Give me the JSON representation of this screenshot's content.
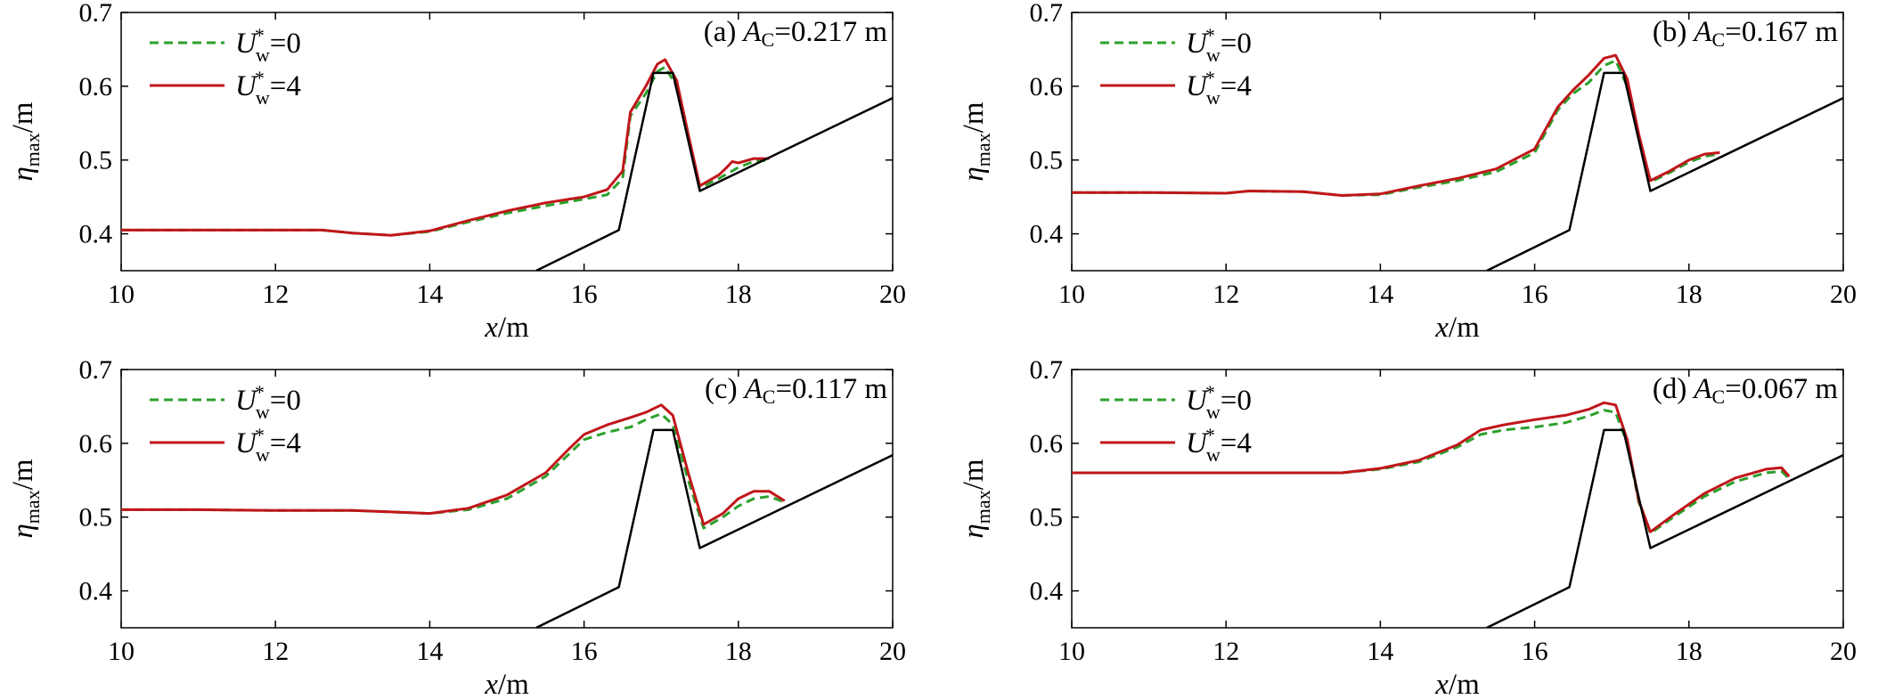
{
  "colors": {
    "wind0": "#2ca02c",
    "wind4": "#c0161a",
    "structure": "#000000"
  },
  "chart_data": [
    {
      "type": "line",
      "annotation": {
        "prefix": "(a)",
        "symbol": "A",
        "sub": "C",
        "value": "=0.217 m"
      },
      "xlabel": {
        "var": "x",
        "unit": "/m"
      },
      "ylabel": {
        "var": "η",
        "sub": "max",
        "unit": "/m"
      },
      "xlim": [
        10,
        20
      ],
      "ylim": [
        0.35,
        0.7
      ],
      "xticks": [
        "10",
        "12",
        "14",
        "16",
        "18",
        "20"
      ],
      "yticks": [
        "0.4",
        "0.5",
        "0.6",
        "0.7"
      ],
      "legend": [
        {
          "var": "U",
          "sup": "*",
          "sub": "w",
          "value": "=0"
        },
        {
          "var": "U",
          "sup": "*",
          "sub": "w",
          "value": "=4"
        }
      ],
      "series": [
        {
          "key": "wind0",
          "dashed": true,
          "x": [
            10,
            11,
            12,
            12.6,
            13,
            13.5,
            14,
            14.5,
            15,
            15.5,
            16,
            16.3,
            16.5,
            16.6,
            16.8,
            16.95,
            17.05,
            17.2,
            17.35,
            17.5,
            17.75,
            18,
            18.2,
            18.4
          ],
          "y": [
            0.405,
            0.405,
            0.405,
            0.405,
            0.401,
            0.398,
            0.403,
            0.416,
            0.428,
            0.438,
            0.447,
            0.453,
            0.475,
            0.56,
            0.59,
            0.62,
            0.626,
            0.6,
            0.53,
            0.462,
            0.475,
            0.49,
            0.498,
            0.5
          ]
        },
        {
          "key": "wind4",
          "dashed": false,
          "x": [
            10,
            11,
            12,
            12.6,
            13,
            13.5,
            14,
            14.5,
            15,
            15.5,
            16,
            16.3,
            16.5,
            16.6,
            16.8,
            16.95,
            17.05,
            17.2,
            17.35,
            17.5,
            17.75,
            17.85,
            17.92,
            18,
            18.2,
            18.4
          ],
          "y": [
            0.405,
            0.405,
            0.405,
            0.405,
            0.401,
            0.398,
            0.404,
            0.418,
            0.431,
            0.442,
            0.45,
            0.46,
            0.485,
            0.565,
            0.6,
            0.63,
            0.636,
            0.608,
            0.535,
            0.465,
            0.48,
            0.49,
            0.498,
            0.496,
            0.502,
            0.502
          ]
        },
        {
          "key": "structure",
          "dashed": false,
          "x": [
            15.38,
            16.45,
            16.9,
            17.15,
            17.5,
            20
          ],
          "y": [
            0.35,
            0.405,
            0.618,
            0.618,
            0.458,
            0.584
          ]
        }
      ]
    },
    {
      "type": "line",
      "annotation": {
        "prefix": "(b)",
        "symbol": "A",
        "sub": "C",
        "value": "=0.167 m"
      },
      "xlabel": {
        "var": "x",
        "unit": "/m"
      },
      "ylabel": {
        "var": "η",
        "sub": "max",
        "unit": "/m"
      },
      "xlim": [
        10,
        20
      ],
      "ylim": [
        0.35,
        0.7
      ],
      "xticks": [
        "10",
        "12",
        "14",
        "16",
        "18",
        "20"
      ],
      "yticks": [
        "0.4",
        "0.5",
        "0.6",
        "0.7"
      ],
      "legend": [
        {
          "var": "U",
          "sup": "*",
          "sub": "w",
          "value": "=0"
        },
        {
          "var": "U",
          "sup": "*",
          "sub": "w",
          "value": "=4"
        }
      ],
      "series": [
        {
          "key": "wind0",
          "dashed": true,
          "x": [
            10,
            11,
            12,
            12.3,
            13,
            13.5,
            14,
            14.5,
            15,
            15.5,
            16,
            16.3,
            16.5,
            16.7,
            16.9,
            17.05,
            17.2,
            17.35,
            17.5,
            17.75,
            18,
            18.2,
            18.4
          ],
          "y": [
            0.456,
            0.456,
            0.455,
            0.458,
            0.457,
            0.452,
            0.453,
            0.463,
            0.472,
            0.484,
            0.51,
            0.568,
            0.59,
            0.605,
            0.628,
            0.635,
            0.6,
            0.53,
            0.47,
            0.483,
            0.497,
            0.505,
            0.508
          ]
        },
        {
          "key": "wind4",
          "dashed": false,
          "x": [
            10,
            11,
            12,
            12.3,
            13,
            13.5,
            14,
            14.5,
            15,
            15.5,
            16,
            16.3,
            16.5,
            16.7,
            16.9,
            17.05,
            17.2,
            17.35,
            17.5,
            17.75,
            18,
            18.2,
            18.4
          ],
          "y": [
            0.456,
            0.456,
            0.455,
            0.458,
            0.457,
            0.452,
            0.454,
            0.465,
            0.475,
            0.488,
            0.515,
            0.572,
            0.595,
            0.615,
            0.638,
            0.642,
            0.61,
            0.535,
            0.472,
            0.485,
            0.5,
            0.508,
            0.51
          ]
        },
        {
          "key": "structure",
          "dashed": false,
          "x": [
            15.38,
            16.45,
            16.9,
            17.15,
            17.5,
            20
          ],
          "y": [
            0.35,
            0.405,
            0.618,
            0.618,
            0.458,
            0.584
          ]
        }
      ]
    },
    {
      "type": "line",
      "annotation": {
        "prefix": "(c)",
        "symbol": "A",
        "sub": "C",
        "value": "=0.117 m"
      },
      "xlabel": {
        "var": "x",
        "unit": "/m"
      },
      "ylabel": {
        "var": "η",
        "sub": "max",
        "unit": "/m"
      },
      "xlim": [
        10,
        20
      ],
      "ylim": [
        0.35,
        0.7
      ],
      "xticks": [
        "10",
        "12",
        "14",
        "16",
        "18",
        "20"
      ],
      "yticks": [
        "0.4",
        "0.5",
        "0.6",
        "0.7"
      ],
      "legend": [
        {
          "var": "U",
          "sup": "*",
          "sub": "w",
          "value": "=0"
        },
        {
          "var": "U",
          "sup": "*",
          "sub": "w",
          "value": "=4"
        }
      ],
      "series": [
        {
          "key": "wind0",
          "dashed": true,
          "x": [
            10,
            11,
            12,
            13,
            13.5,
            14,
            14.5,
            15,
            15.5,
            15.8,
            16,
            16.3,
            16.6,
            16.8,
            17,
            17.15,
            17.35,
            17.55,
            17.8,
            18,
            18.2,
            18.4,
            18.6
          ],
          "y": [
            0.51,
            0.51,
            0.509,
            0.509,
            0.507,
            0.505,
            0.51,
            0.525,
            0.555,
            0.585,
            0.605,
            0.615,
            0.622,
            0.632,
            0.64,
            0.625,
            0.55,
            0.485,
            0.5,
            0.515,
            0.525,
            0.528,
            0.52
          ]
        },
        {
          "key": "wind4",
          "dashed": false,
          "x": [
            10,
            11,
            12,
            13,
            13.5,
            14,
            14.5,
            15,
            15.5,
            15.8,
            16,
            16.3,
            16.6,
            16.8,
            17,
            17.15,
            17.35,
            17.55,
            17.8,
            18,
            18.2,
            18.4,
            18.6
          ],
          "y": [
            0.51,
            0.51,
            0.509,
            0.509,
            0.507,
            0.505,
            0.512,
            0.53,
            0.56,
            0.592,
            0.612,
            0.625,
            0.635,
            0.642,
            0.652,
            0.638,
            0.56,
            0.49,
            0.505,
            0.525,
            0.535,
            0.535,
            0.522
          ]
        },
        {
          "key": "structure",
          "dashed": false,
          "x": [
            15.38,
            16.45,
            16.9,
            17.15,
            17.5,
            20
          ],
          "y": [
            0.35,
            0.405,
            0.618,
            0.618,
            0.458,
            0.584
          ]
        }
      ]
    },
    {
      "type": "line",
      "annotation": {
        "prefix": "(d)",
        "symbol": "A",
        "sub": "C",
        "value": "=0.067 m"
      },
      "xlabel": {
        "var": "x",
        "unit": "/m"
      },
      "ylabel": {
        "var": "η",
        "sub": "max",
        "unit": "/m"
      },
      "xlim": [
        10,
        20
      ],
      "ylim": [
        0.35,
        0.7
      ],
      "xticks": [
        "10",
        "12",
        "14",
        "16",
        "18",
        "20"
      ],
      "yticks": [
        "0.4",
        "0.5",
        "0.6",
        "0.7"
      ],
      "legend": [
        {
          "var": "U",
          "sup": "*",
          "sub": "w",
          "value": "=0"
        },
        {
          "var": "U",
          "sup": "*",
          "sub": "w",
          "value": "=4"
        }
      ],
      "series": [
        {
          "key": "wind0",
          "dashed": true,
          "x": [
            10,
            11,
            12,
            13,
            13.5,
            14,
            14.5,
            15,
            15.3,
            15.6,
            16,
            16.4,
            16.7,
            16.9,
            17.05,
            17.2,
            17.35,
            17.5,
            17.8,
            18.2,
            18.6,
            19,
            19.2,
            19.3
          ],
          "y": [
            0.56,
            0.56,
            0.56,
            0.56,
            0.56,
            0.565,
            0.575,
            0.595,
            0.612,
            0.618,
            0.622,
            0.628,
            0.637,
            0.645,
            0.642,
            0.6,
            0.52,
            0.478,
            0.5,
            0.528,
            0.548,
            0.56,
            0.562,
            0.552
          ]
        },
        {
          "key": "wind4",
          "dashed": false,
          "x": [
            10,
            11,
            12,
            13,
            13.5,
            14,
            14.5,
            15,
            15.3,
            15.6,
            16,
            16.4,
            16.7,
            16.9,
            17.05,
            17.2,
            17.35,
            17.5,
            17.8,
            18.2,
            18.6,
            19,
            19.2,
            19.3
          ],
          "y": [
            0.56,
            0.56,
            0.56,
            0.56,
            0.56,
            0.566,
            0.577,
            0.598,
            0.618,
            0.625,
            0.632,
            0.638,
            0.646,
            0.655,
            0.652,
            0.605,
            0.522,
            0.48,
            0.503,
            0.532,
            0.553,
            0.565,
            0.567,
            0.555
          ]
        },
        {
          "key": "structure",
          "dashed": false,
          "x": [
            15.38,
            16.45,
            16.9,
            17.15,
            17.5,
            20
          ],
          "y": [
            0.35,
            0.405,
            0.618,
            0.618,
            0.458,
            0.584
          ]
        }
      ]
    }
  ]
}
